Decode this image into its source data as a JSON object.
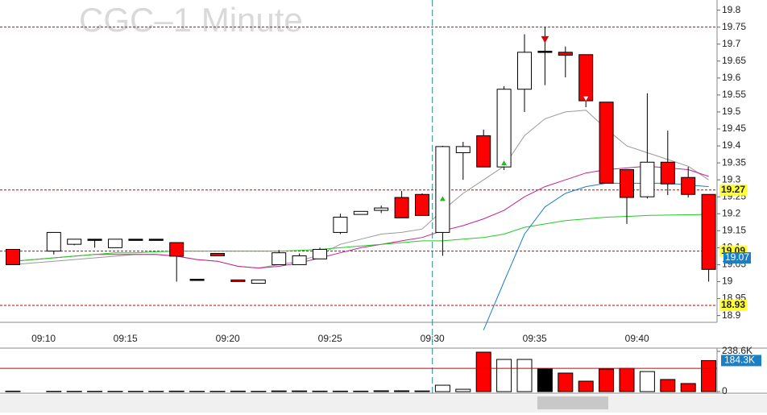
{
  "chart_data": {
    "type": "candlestick",
    "title": "CGC–1 Minute",
    "categories": [
      null,
      null,
      "09:10",
      null,
      null,
      null,
      "09:15",
      null,
      null,
      null,
      null,
      "09:20",
      null,
      null,
      null,
      null,
      "09:25",
      null,
      null,
      null,
      null,
      "09:30",
      null,
      null,
      null,
      null,
      "09:35",
      null,
      null,
      null,
      null,
      "09:40",
      null,
      null,
      null
    ],
    "open": [
      19.095,
      null,
      19.09,
      19.11,
      19.125,
      19.1,
      19.125,
      19.125,
      19.115,
      19.007,
      19.083,
      19.005,
      18.995,
      19.05,
      19.05,
      19.067,
      19.145,
      19.198,
      19.21,
      19.248,
      19.257,
      19.145,
      19.38,
      19.43,
      19.338,
      19.567,
      19.679,
      19.676,
      19.669,
      19.529,
      19.33,
      19.25,
      19.352,
      19.307,
      19.257
    ],
    "high": [
      19.095,
      null,
      19.145,
      19.125,
      19.125,
      19.125,
      19.125,
      19.125,
      19.115,
      19.007,
      19.083,
      19.005,
      19.005,
      19.093,
      19.083,
      19.1,
      19.2,
      19.207,
      19.224,
      19.267,
      19.26,
      19.4,
      19.412,
      19.448,
      19.576,
      19.729,
      19.75,
      19.693,
      19.669,
      19.529,
      19.33,
      19.555,
      19.445,
      19.338,
      19.257
    ],
    "low": [
      19.05,
      null,
      19.08,
      19.107,
      19.1,
      19.1,
      19.125,
      19.125,
      19.0,
      19.007,
      19.076,
      19.0,
      18.995,
      19.05,
      19.05,
      19.067,
      19.14,
      19.198,
      19.202,
      19.188,
      19.195,
      19.076,
      19.3,
      19.338,
      19.329,
      19.5,
      19.579,
      19.602,
      19.514,
      19.29,
      19.17,
      19.245,
      19.255,
      19.248,
      19.0
    ],
    "close": [
      19.05,
      null,
      19.145,
      19.125,
      19.125,
      19.125,
      19.125,
      19.125,
      19.075,
      19.007,
      19.076,
      19.0,
      19.005,
      19.085,
      19.076,
      19.095,
      19.19,
      19.207,
      19.217,
      19.188,
      19.195,
      19.398,
      19.398,
      19.338,
      19.567,
      19.676,
      19.679,
      19.667,
      19.533,
      19.29,
      19.248,
      19.352,
      19.288,
      19.257,
      19.036
    ],
    "volume": [
      3000,
      null,
      2000,
      2000,
      2000,
      2000,
      2000,
      2000,
      3000,
      2000,
      2000,
      3000,
      2000,
      4000,
      4000,
      3000,
      3000,
      3000,
      5000,
      5000,
      4000,
      38000,
      14000,
      234000,
      191000,
      191000,
      134000,
      110000,
      62000,
      134000,
      138000,
      119000,
      72000,
      48000,
      184300
    ],
    "series": [
      {
        "color": "#999999",
        "values": [
          19.05,
          19.055,
          19.06,
          19.065,
          19.07,
          19.075,
          19.08,
          19.08,
          19.075,
          19.065,
          19.06,
          19.045,
          19.04,
          19.05,
          19.06,
          19.08,
          19.11,
          19.125,
          19.14,
          19.145,
          19.155,
          19.21,
          19.26,
          19.3,
          19.34,
          19.43,
          19.48,
          19.5,
          19.505,
          19.45,
          19.4,
          19.38,
          19.36,
          19.34,
          19.3
        ]
      },
      {
        "color": "#cc1f8a",
        "values": [
          19.06,
          19.065,
          19.07,
          19.075,
          19.08,
          19.08,
          19.08,
          19.08,
          19.075,
          19.065,
          19.06,
          19.045,
          19.04,
          19.045,
          19.055,
          19.07,
          19.085,
          19.1,
          19.11,
          19.12,
          19.13,
          19.15,
          19.165,
          19.185,
          19.21,
          19.25,
          19.28,
          19.3,
          19.32,
          19.33,
          19.335,
          19.34,
          19.335,
          19.33,
          19.31
        ]
      },
      {
        "color": "#22cc22",
        "values": [
          19.06,
          19.065,
          19.07,
          19.075,
          19.08,
          19.085,
          19.085,
          19.088,
          19.09,
          19.09,
          19.09,
          19.09,
          19.09,
          19.09,
          19.092,
          19.095,
          19.1,
          19.105,
          19.11,
          19.115,
          19.12,
          19.12,
          19.125,
          19.13,
          19.14,
          19.16,
          19.17,
          19.18,
          19.185,
          19.19,
          19.192,
          19.195,
          19.196,
          19.197,
          19.198
        ]
      },
      {
        "color": "#1a7fc4",
        "values": [
          null,
          null,
          null,
          null,
          null,
          null,
          null,
          null,
          null,
          null,
          null,
          null,
          null,
          null,
          null,
          null,
          null,
          null,
          null,
          null,
          null,
          null,
          null,
          18.857,
          19.0,
          19.14,
          19.22,
          19.26,
          19.28,
          19.29,
          19.29,
          19.29,
          19.29,
          19.285,
          19.28
        ]
      }
    ],
    "signals": [
      {
        "index": 21,
        "value": 19.245,
        "kind": "buy"
      },
      {
        "index": 24,
        "value": 19.35,
        "kind": "buy"
      },
      {
        "index": 26,
        "value": 19.715,
        "kind": "sell"
      },
      {
        "index": 28,
        "value": 19.54,
        "kind": "sell-hollow"
      }
    ],
    "price_lines": [
      19.75
    ],
    "price_labels": [
      19.27,
      19.09,
      18.93
    ],
    "ma_label": 19.07,
    "ylim": [
      18.88,
      19.83
    ],
    "yticks": [
      18.9,
      18.95,
      19,
      19.05,
      19.1,
      19.15,
      19.2,
      19.25,
      19.3,
      19.35,
      19.4,
      19.45,
      19.5,
      19.55,
      19.6,
      19.65,
      19.7,
      19.75,
      19.8
    ],
    "volume_ylim": [
      0,
      258000
    ],
    "volume_ticks": [
      {
        "value": 238600,
        "label": "238.6K"
      },
      0
    ],
    "volume_line": 138000,
    "volume_label": {
      "value": 184300,
      "label": "184.3K"
    }
  }
}
